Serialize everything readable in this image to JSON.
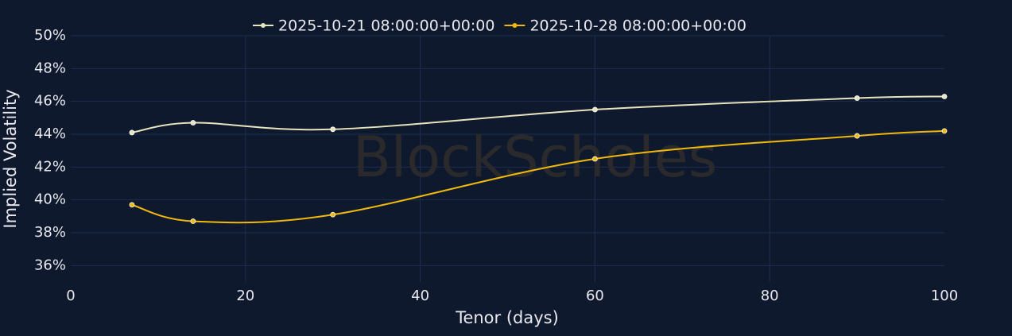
{
  "chart_data": {
    "type": "line",
    "x_label": "Tenor (days)",
    "y_label": "Implied Volatility",
    "watermark": "BlockScholes",
    "x": [
      7,
      14,
      30,
      60,
      90,
      100
    ],
    "series": [
      {
        "name": "2025-10-21 08:00:00+00:00",
        "color": "#e6e4bd",
        "values": [
          44.1,
          44.7,
          44.3,
          45.5,
          46.2,
          46.3
        ]
      },
      {
        "name": "2025-10-28 08:00:00+00:00",
        "color": "#f0b90b",
        "values": [
          39.7,
          38.7,
          39.1,
          42.5,
          43.9,
          44.2
        ]
      }
    ],
    "xlim": [
      0,
      100
    ],
    "xticks": [
      0,
      20,
      40,
      60,
      80,
      100
    ],
    "ylim": [
      35,
      50
    ],
    "yticks": [
      {
        "value": 36,
        "label": "36%"
      },
      {
        "value": 38,
        "label": "38%"
      },
      {
        "value": 40,
        "label": "40%"
      },
      {
        "value": 42,
        "label": "42%"
      },
      {
        "value": 44,
        "label": "44%"
      },
      {
        "value": 46,
        "label": "46%"
      },
      {
        "value": 48,
        "label": "48%"
      },
      {
        "value": 50,
        "label": "50%"
      }
    ],
    "grid": true,
    "legend": "top"
  }
}
